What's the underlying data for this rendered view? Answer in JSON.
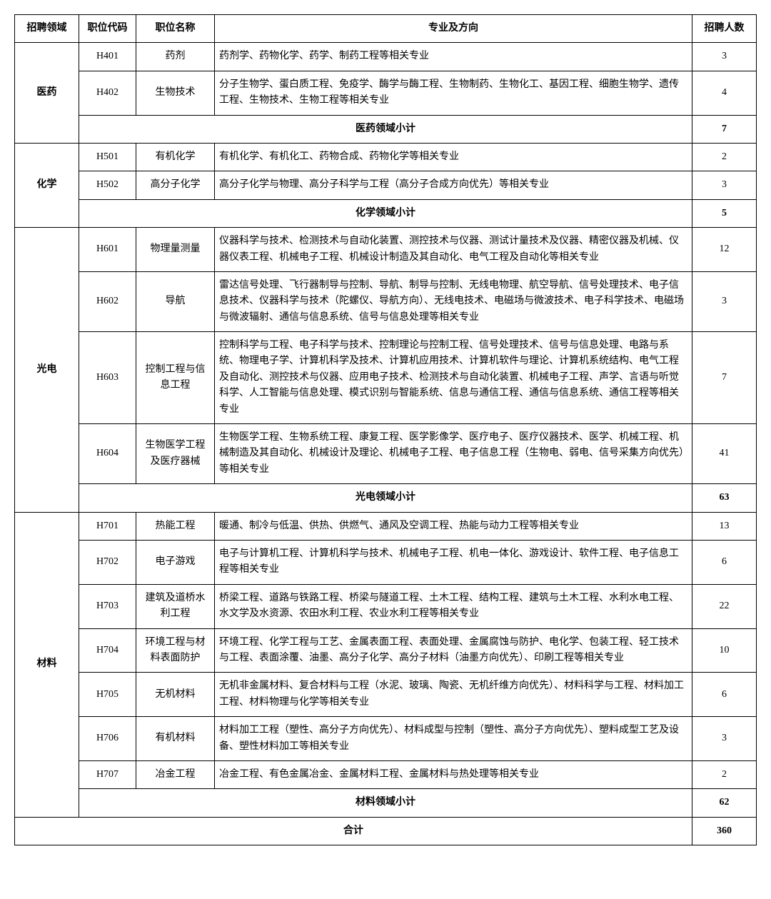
{
  "headers": {
    "field": "招聘领域",
    "code": "职位代码",
    "name": "职位名称",
    "major": "专业及方向",
    "count": "招聘人数"
  },
  "groups": [
    {
      "field": "医药",
      "subtotal_label": "医药领域小计",
      "subtotal": 7,
      "rows": [
        {
          "code": "H401",
          "name": "药剂",
          "major": "药剂学、药物化学、药学、制药工程等相关专业",
          "count": 3
        },
        {
          "code": "H402",
          "name": "生物技术",
          "major": "分子生物学、蛋白质工程、免疫学、酶学与酶工程、生物制药、生物化工、基因工程、细胞生物学、遗传工程、生物技术、生物工程等相关专业",
          "count": 4
        }
      ]
    },
    {
      "field": "化学",
      "subtotal_label": "化学领域小计",
      "subtotal": 5,
      "rows": [
        {
          "code": "H501",
          "name": "有机化学",
          "major": "有机化学、有机化工、药物合成、药物化学等相关专业",
          "count": 2
        },
        {
          "code": "H502",
          "name": "高分子化学",
          "major": "高分子化学与物理、高分子科学与工程（高分子合成方向优先）等相关专业",
          "count": 3
        }
      ]
    },
    {
      "field": "光电",
      "subtotal_label": "光电领域小计",
      "subtotal": 63,
      "rows": [
        {
          "code": "H601",
          "name": "物理量测量",
          "major": "仪器科学与技术、检测技术与自动化装置、测控技术与仪器、测试计量技术及仪器、精密仪器及机械、仪器仪表工程、机械电子工程、机械设计制造及其自动化、电气工程及自动化等相关专业",
          "count": 12
        },
        {
          "code": "H602",
          "name": "导航",
          "major": "雷达信号处理、飞行器制导与控制、导航、制导与控制、无线电物理、航空导航、信号处理技术、电子信息技术、仪器科学与技术（陀螺仪、导航方向）、无线电技术、电磁场与微波技术、电子科学技术、电磁场与微波辐射、通信与信息系统、信号与信息处理等相关专业",
          "count": 3
        },
        {
          "code": "H603",
          "name": "控制工程与信息工程",
          "major": "控制科学与工程、电子科学与技术、控制理论与控制工程、信号处理技术、信号与信息处理、电路与系统、物理电子学、计算机科学及技术、计算机应用技术、计算机软件与理论、计算机系统结构、电气工程及自动化、测控技术与仪器、应用电子技术、检测技术与自动化装置、机械电子工程、声学、言语与听觉科学、人工智能与信息处理、模式识别与智能系统、信息与通信工程、通信与信息系统、通信工程等相关专业",
          "count": 7
        },
        {
          "code": "H604",
          "name": "生物医学工程及医疗器械",
          "major": "生物医学工程、生物系统工程、康复工程、医学影像学、医疗电子、医疗仪器技术、医学、机械工程、机械制造及其自动化、机械设计及理论、机械电子工程、电子信息工程（生物电、弱电、信号采集方向优先）等相关专业",
          "count": 41
        }
      ]
    },
    {
      "field": "材料",
      "subtotal_label": "材料领域小计",
      "subtotal": 62,
      "rows": [
        {
          "code": "H701",
          "name": "热能工程",
          "major": "暖通、制冷与低温、供热、供燃气、通风及空调工程、热能与动力工程等相关专业",
          "count": 13
        },
        {
          "code": "H702",
          "name": "电子游戏",
          "major": "电子与计算机工程、计算机科学与技术、机械电子工程、机电一体化、游戏设计、软件工程、电子信息工程等相关专业",
          "count": 6
        },
        {
          "code": "H703",
          "name": "建筑及道桥水利工程",
          "major": "桥梁工程、道路与铁路工程、桥梁与隧道工程、土木工程、结构工程、建筑与土木工程、水利水电工程、水文学及水资源、农田水利工程、农业水利工程等相关专业",
          "count": 22
        },
        {
          "code": "H704",
          "name": "环境工程与材料表面防护",
          "major": "环境工程、化学工程与工艺、金属表面工程、表面处理、金属腐蚀与防护、电化学、包装工程、轻工技术与工程、表面涂覆、油墨、高分子化学、高分子材料（油墨方向优先）、印刷工程等相关专业",
          "count": 10
        },
        {
          "code": "H705",
          "name": "无机材料",
          "major": "无机非金属材料、复合材料与工程（水泥、玻璃、陶瓷、无机纤维方向优先）、材料科学与工程、材料加工工程、材料物理与化学等相关专业",
          "count": 6
        },
        {
          "code": "H706",
          "name": "有机材料",
          "major": "材料加工工程（塑性、高分子方向优先）、材料成型与控制（塑性、高分子方向优先）、塑料成型工艺及设备、塑性材料加工等相关专业",
          "count": 3
        },
        {
          "code": "H707",
          "name": "冶金工程",
          "major": "冶金工程、有色金属冶金、金属材料工程、金属材料与热处理等相关专业",
          "count": 2
        }
      ]
    }
  ],
  "total_label": "合计",
  "total": 360
}
